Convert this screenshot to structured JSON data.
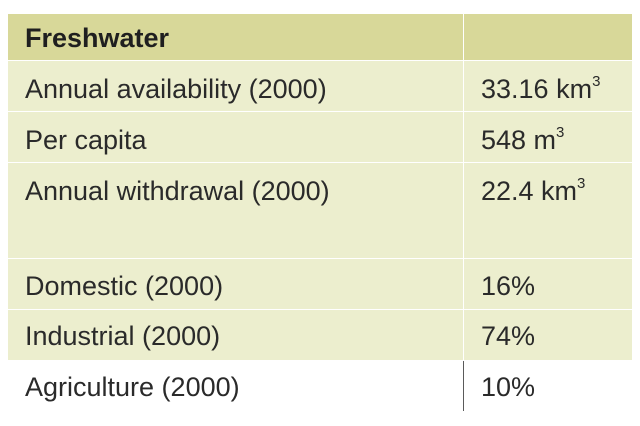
{
  "table": {
    "header": {
      "label": "Freshwater",
      "value": ""
    },
    "rows": [
      {
        "label": "Annual availability (2000)",
        "value": "33.16 km",
        "sup": "3"
      },
      {
        "label": "Per capita",
        "value": "548 m",
        "sup": "3"
      },
      {
        "label": "Annual withdrawal (2000)",
        "value": "22.4 km",
        "sup": "3"
      },
      {
        "label": "Domestic (2000)",
        "value": "16%",
        "sup": ""
      },
      {
        "label": "Industrial (2000)",
        "value": "74%",
        "sup": ""
      },
      {
        "label": "Agriculture (2000)",
        "value": "10%",
        "sup": ""
      }
    ]
  },
  "colors": {
    "header_bg": "#d8d899",
    "row_bg": "#eceece",
    "text": "#2a2a2a"
  }
}
